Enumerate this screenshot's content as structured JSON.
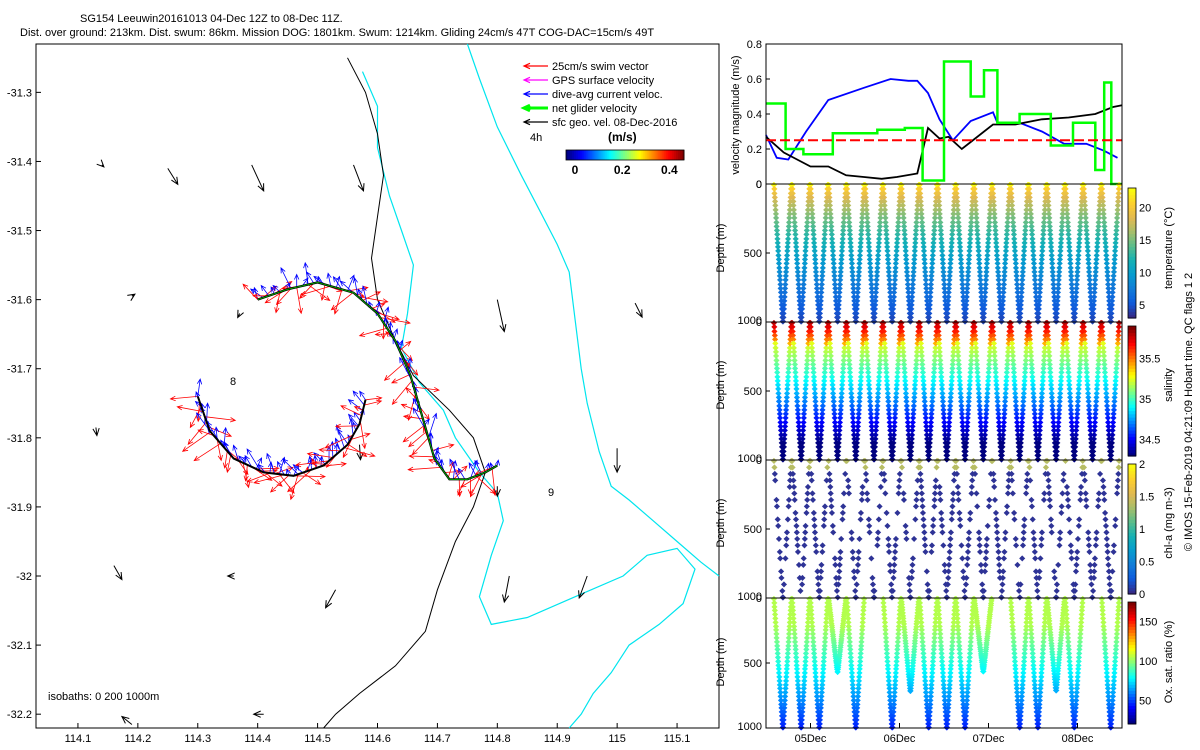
{
  "title": {
    "line1": "SG154 Leeuwin20161013 04-Dec 12Z to 08-Dec 11Z.",
    "line2": "Dist. over ground: 213km. Dist. swum: 86km. Mission DOG: 1801km. Swum: 1214km. Gliding 24cm/s 47T COG-DAC=15cm/s 49T"
  },
  "footer_vertical": "© IMOS 15-Feb-2019 04:21:09 Hobart time. QC flags 1  2",
  "chart_data": [
    {
      "id": "map",
      "type": "quiver-map",
      "xlim": [
        114.03,
        115.17
      ],
      "ylim": [
        -32.22,
        -31.23
      ],
      "xticks": [
        114.1,
        114.2,
        114.3,
        114.4,
        114.5,
        114.6,
        114.7,
        114.8,
        114.9,
        115,
        115.1
      ],
      "yticks": [
        -31.3,
        -31.4,
        -31.5,
        -31.6,
        -31.7,
        -31.8,
        -31.9,
        -32,
        -32.1,
        -32.2
      ],
      "legend": {
        "placement": "top-right",
        "items": [
          {
            "label": "25cm/s swim vector",
            "color": "#ff0000"
          },
          {
            "label": "GPS surface velocity",
            "color": "#ff00ff"
          },
          {
            "label": "dive-avg current veloc.",
            "color": "#0000ff"
          },
          {
            "label": "net glider velocity",
            "color": "#00ff00"
          },
          {
            "label": "sfc geo. vel. 08-Dec-2016",
            "color": "#000000"
          }
        ]
      },
      "colorbar": {
        "label": "(m/s)",
        "ticks": [
          "0",
          "0.2",
          "0.4"
        ],
        "note": "4h"
      },
      "annotations": [
        {
          "text": "isobaths: 0   200  1000m",
          "x": 114.1,
          "y": -32.16
        },
        {
          "text": "9",
          "x": 114.89,
          "y": -31.895
        },
        {
          "text": "8",
          "x": 114.37,
          "y": -31.74
        }
      ],
      "track": [
        [
          114.4,
          -31.6
        ],
        [
          114.45,
          -31.585
        ],
        [
          114.5,
          -31.575
        ],
        [
          114.56,
          -31.59
        ],
        [
          114.6,
          -31.62
        ],
        [
          114.63,
          -31.66
        ],
        [
          114.655,
          -31.71
        ],
        [
          114.675,
          -31.77
        ],
        [
          114.695,
          -31.83
        ],
        [
          114.72,
          -31.86
        ],
        [
          114.75,
          -31.86
        ],
        [
          114.78,
          -31.85
        ],
        [
          114.8,
          -31.84
        ]
      ],
      "track2": [
        [
          114.3,
          -31.74
        ],
        [
          114.32,
          -31.79
        ],
        [
          114.36,
          -31.83
        ],
        [
          114.41,
          -31.85
        ],
        [
          114.46,
          -31.855
        ],
        [
          114.51,
          -31.84
        ],
        [
          114.55,
          -31.81
        ],
        [
          114.57,
          -31.78
        ],
        [
          114.58,
          -31.745
        ]
      ],
      "coastline": [
        [
          114.575,
          -31.27
        ],
        [
          114.6,
          -31.32
        ],
        [
          114.6,
          -31.38
        ],
        [
          114.62,
          -31.45
        ],
        [
          114.64,
          -31.5
        ],
        [
          114.66,
          -31.55
        ],
        [
          114.65,
          -31.62
        ],
        [
          114.64,
          -31.67
        ],
        [
          114.67,
          -31.72
        ],
        [
          114.71,
          -31.76
        ],
        [
          114.73,
          -31.8
        ],
        [
          114.77,
          -31.85
        ],
        [
          114.8,
          -31.88
        ],
        [
          114.81,
          -31.92
        ],
        [
          114.79,
          -31.97
        ],
        [
          114.77,
          -32.03
        ],
        [
          114.79,
          -32.07
        ],
        [
          114.85,
          -32.06
        ],
        [
          114.93,
          -32.03
        ],
        [
          115.01,
          -32.0
        ],
        [
          115.05,
          -31.97
        ],
        [
          115.1,
          -31.96
        ],
        [
          115.13,
          -31.99
        ],
        [
          115.11,
          -32.04
        ],
        [
          115.07,
          -32.07
        ],
        [
          115.02,
          -32.1
        ],
        [
          114.99,
          -32.14
        ],
        [
          114.96,
          -32.17
        ],
        [
          114.94,
          -32.2
        ],
        [
          114.92,
          -32.22
        ]
      ],
      "isobath_200": [
        [
          114.75,
          -31.23
        ],
        [
          114.77,
          -31.28
        ],
        [
          114.8,
          -31.35
        ],
        [
          114.84,
          -31.42
        ],
        [
          114.87,
          -31.47
        ],
        [
          114.9,
          -31.52
        ],
        [
          114.92,
          -31.56
        ],
        [
          114.93,
          -31.63
        ],
        [
          114.94,
          -31.7
        ],
        [
          114.95,
          -31.75
        ],
        [
          114.97,
          -31.82
        ],
        [
          114.99,
          -31.87
        ],
        [
          115.02,
          -31.89
        ],
        [
          115.06,
          -31.92
        ],
        [
          115.1,
          -31.95
        ],
        [
          115.14,
          -31.98
        ],
        [
          115.17,
          -32.0
        ]
      ],
      "isobath_1000": [
        [
          114.55,
          -31.25
        ],
        [
          114.58,
          -31.3
        ],
        [
          114.6,
          -31.36
        ],
        [
          114.61,
          -31.42
        ],
        [
          114.6,
          -31.48
        ],
        [
          114.59,
          -31.54
        ],
        [
          114.6,
          -31.6
        ],
        [
          114.63,
          -31.66
        ],
        [
          114.66,
          -31.71
        ],
        [
          114.72,
          -31.76
        ],
        [
          114.76,
          -31.8
        ],
        [
          114.78,
          -31.85
        ],
        [
          114.76,
          -31.9
        ],
        [
          114.73,
          -31.95
        ],
        [
          114.7,
          -32.02
        ],
        [
          114.68,
          -32.08
        ],
        [
          114.63,
          -32.13
        ],
        [
          114.57,
          -32.17
        ],
        [
          114.53,
          -32.2
        ],
        [
          114.51,
          -32.22
        ]
      ],
      "geo_vectors": [
        {
          "x": 114.14,
          "y": -31.405,
          "u": 0.02,
          "v": -0.02
        },
        {
          "x": 114.25,
          "y": -31.41,
          "u": 0.1,
          "v": -0.16
        },
        {
          "x": 114.39,
          "y": -31.405,
          "u": 0.12,
          "v": -0.26
        },
        {
          "x": 114.56,
          "y": -31.405,
          "u": 0.1,
          "v": -0.26
        },
        {
          "x": 114.19,
          "y": -31.595,
          "u": 0.03,
          "v": 0.02
        },
        {
          "x": 114.37,
          "y": -31.62,
          "u": -0.02,
          "v": -0.04
        },
        {
          "x": 114.8,
          "y": -31.6,
          "u": 0.07,
          "v": -0.32
        },
        {
          "x": 115.03,
          "y": -31.605,
          "u": 0.07,
          "v": -0.14
        },
        {
          "x": 114.13,
          "y": -31.785,
          "u": 0.01,
          "v": -0.08
        },
        {
          "x": 114.57,
          "y": -31.81,
          "u": 0.01,
          "v": -0.15
        },
        {
          "x": 114.8,
          "y": -31.87,
          "u": 0.0,
          "v": -0.1
        },
        {
          "x": 115.0,
          "y": -31.815,
          "u": 0.0,
          "v": -0.24
        },
        {
          "x": 114.16,
          "y": -31.985,
          "u": 0.08,
          "v": -0.14
        },
        {
          "x": 114.36,
          "y": -32.0,
          "u": -0.06,
          "v": 0.0
        },
        {
          "x": 114.53,
          "y": -32.02,
          "u": -0.1,
          "v": -0.18
        },
        {
          "x": 114.82,
          "y": -32.0,
          "u": -0.05,
          "v": -0.26
        },
        {
          "x": 114.95,
          "y": -32.0,
          "u": -0.08,
          "v": -0.22
        },
        {
          "x": 114.19,
          "y": -32.215,
          "u": -0.1,
          "v": 0.08
        },
        {
          "x": 114.41,
          "y": -32.2,
          "u": -0.1,
          "v": 0.0
        }
      ]
    },
    {
      "id": "velocity",
      "type": "line",
      "ylabel": "velocity magnitude (m/s)",
      "ylim": [
        0,
        0.8
      ],
      "yticks": [
        0,
        0.2,
        0.4,
        0.6,
        0.8
      ],
      "xlim": [
        4.5,
        8.5
      ],
      "series": [
        {
          "name": "dive-avg current",
          "color": "#0000ff",
          "x": [
            4.5,
            4.62,
            4.75,
            4.95,
            5.2,
            5.6,
            5.9,
            6.1,
            6.2,
            6.32,
            6.45,
            6.6,
            6.8,
            7.05,
            7.1,
            7.35,
            7.6,
            7.85,
            8.1,
            8.3,
            8.45
          ],
          "y": [
            0.28,
            0.15,
            0.14,
            0.3,
            0.48,
            0.55,
            0.6,
            0.59,
            0.59,
            0.52,
            0.37,
            0.25,
            0.36,
            0.41,
            0.35,
            0.35,
            0.3,
            0.23,
            0.23,
            0.19,
            0.15
          ]
        },
        {
          "name": "sfc geo vel",
          "color": "#000000",
          "x": [
            4.5,
            4.7,
            4.85,
            5.0,
            5.2,
            5.4,
            5.6,
            5.8,
            5.97,
            6.2,
            6.32,
            6.45,
            6.55,
            6.7,
            6.8,
            7.05,
            7.3,
            7.6,
            7.9,
            8.2,
            8.4,
            8.5
          ],
          "y": [
            0.27,
            0.18,
            0.14,
            0.1,
            0.1,
            0.05,
            0.04,
            0.03,
            0.04,
            0.06,
            0.32,
            0.26,
            0.27,
            0.2,
            0.24,
            0.34,
            0.34,
            0.37,
            0.38,
            0.4,
            0.44,
            0.45
          ]
        },
        {
          "name": "net glider velocity",
          "color": "#00ff00",
          "x": [
            4.5,
            4.72,
            4.72,
            4.92,
            4.92,
            5.25,
            5.25,
            5.75,
            5.75,
            6.06,
            6.06,
            6.26,
            6.26,
            6.5,
            6.5,
            6.8,
            6.8,
            6.95,
            6.95,
            7.1,
            7.1,
            7.35,
            7.35,
            7.7,
            7.7,
            7.95,
            7.95,
            8.2,
            8.2,
            8.3,
            8.3,
            8.38,
            8.38,
            8.5
          ],
          "y": [
            0.46,
            0.46,
            0.2,
            0.2,
            0.17,
            0.17,
            0.29,
            0.29,
            0.31,
            0.31,
            0.32,
            0.32,
            0.02,
            0.02,
            0.7,
            0.7,
            0.5,
            0.5,
            0.65,
            0.65,
            0.35,
            0.35,
            0.4,
            0.4,
            0.22,
            0.22,
            0.35,
            0.35,
            0.08,
            0.08,
            0.58,
            0.58,
            0.0,
            0.0
          ]
        },
        {
          "name": "reference 0.25 m/s",
          "color": "#ff0000",
          "dashed": true,
          "x": [
            4.5,
            8.5
          ],
          "y": [
            0.25,
            0.25
          ]
        }
      ]
    },
    {
      "id": "temperature",
      "type": "scatter",
      "ylabel": "Depth (m)",
      "ylim": [
        0,
        1000
      ],
      "yticks": [
        0,
        500,
        1000
      ],
      "cbar_label": "temperature (°C)",
      "cbar_ticks": [
        5,
        10,
        15,
        20
      ],
      "cbar_range": [
        3,
        23
      ],
      "colormap": "parula",
      "dives": 19,
      "max_depth": 1000
    },
    {
      "id": "salinity",
      "type": "scatter",
      "ylabel": "Depth (m)",
      "ylim": [
        0,
        1000
      ],
      "yticks": [
        0,
        500,
        1000
      ],
      "cbar_label": "salinity",
      "cbar_ticks": [
        34.5,
        35,
        35.5
      ],
      "cbar_range": [
        34.3,
        35.9
      ],
      "colormap": "jet",
      "dives": 19,
      "max_depth": 1000
    },
    {
      "id": "chla",
      "type": "scatter",
      "ylabel": "Depth (m)",
      "ylim": [
        0,
        1000
      ],
      "yticks": [
        0,
        500,
        1000
      ],
      "cbar_label": "chl-a (mg m-3)",
      "cbar_ticks": [
        0,
        0.5,
        1,
        1.5,
        2
      ],
      "cbar_range": [
        0,
        2
      ],
      "colormap": "parula",
      "dives": 19,
      "max_depth": 1000
    },
    {
      "id": "oxygen",
      "type": "scatter",
      "ylabel": "Depth (m)",
      "ylim": [
        0,
        1000
      ],
      "yticks": [
        0,
        500,
        1000
      ],
      "cbar_label": "Ox. sat. ratio (%)",
      "cbar_ticks": [
        50,
        100,
        150
      ],
      "cbar_range": [
        20,
        175
      ],
      "colormap": "jet",
      "xticks": [
        5,
        6,
        7,
        8
      ],
      "xticklabels": [
        "05Dec",
        "06Dec",
        "07Dec",
        "08Dec"
      ],
      "dives": 19,
      "max_depth": 1000
    }
  ]
}
